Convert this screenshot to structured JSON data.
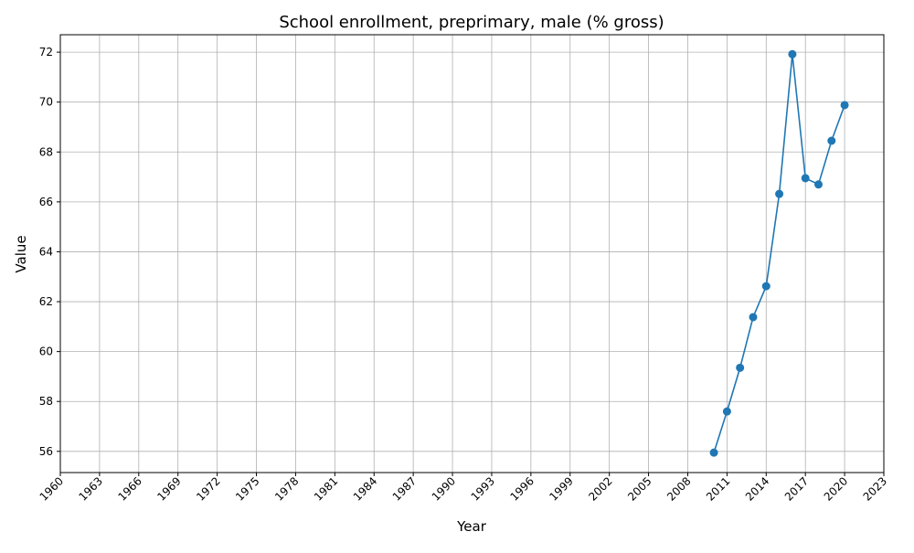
{
  "chart_data": {
    "type": "line",
    "title": "School enrollment, preprimary, male (% gross)",
    "xlabel": "Year",
    "ylabel": "Value",
    "xlim": [
      1960,
      2023
    ],
    "ylim": [
      55.15,
      72.7
    ],
    "grid": true,
    "xticks": [
      1960,
      1963,
      1966,
      1969,
      1972,
      1975,
      1978,
      1981,
      1984,
      1987,
      1990,
      1993,
      1996,
      1999,
      2002,
      2005,
      2008,
      2011,
      2014,
      2017,
      2020,
      2023
    ],
    "yticks": [
      56,
      58,
      60,
      62,
      64,
      66,
      68,
      70,
      72
    ],
    "series": [
      {
        "color": "#1f77b4",
        "marker": "circle",
        "x": [
          2010,
          2011,
          2012,
          2013,
          2014,
          2015,
          2016,
          2017,
          2018,
          2019,
          2020
        ],
        "y": [
          55.95,
          57.6,
          59.35,
          61.38,
          62.62,
          66.32,
          71.92,
          66.95,
          66.7,
          68.45,
          69.88
        ]
      }
    ]
  }
}
